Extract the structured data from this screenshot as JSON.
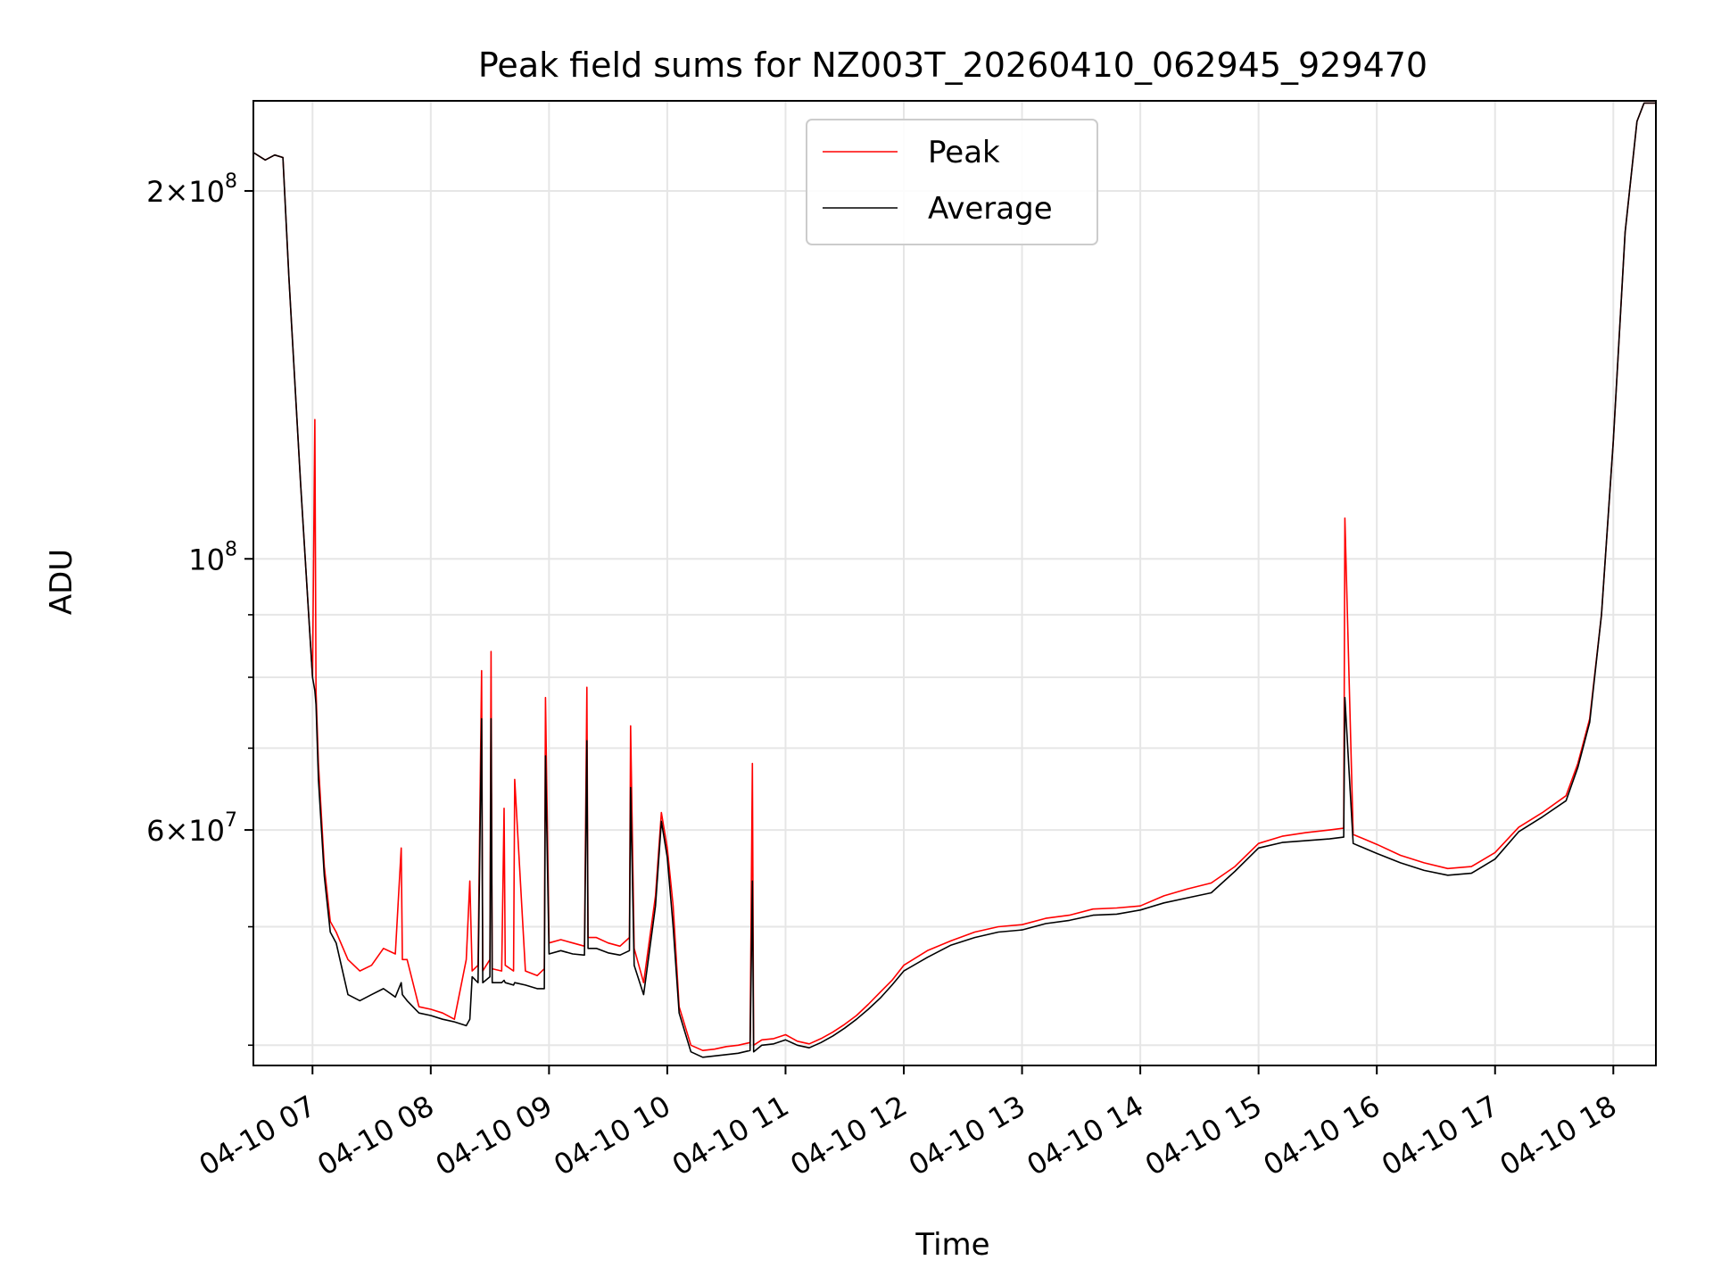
{
  "chart_data": {
    "type": "line",
    "title": "Peak field sums for NZ003T_20260410_062945_929470",
    "xlabel": "Time",
    "ylabel": "ADU",
    "yscale": "log",
    "xlim": [
      6.5,
      18.36
    ],
    "ylim": [
      38500000,
      237000000
    ],
    "grid": true,
    "legend_position": "top-center",
    "x_ticks": [
      {
        "value": 7,
        "label": "04-10 07"
      },
      {
        "value": 8,
        "label": "04-10 08"
      },
      {
        "value": 9,
        "label": "04-10 09"
      },
      {
        "value": 10,
        "label": "04-10 10"
      },
      {
        "value": 11,
        "label": "04-10 11"
      },
      {
        "value": 12,
        "label": "04-10 12"
      },
      {
        "value": 13,
        "label": "04-10 13"
      },
      {
        "value": 14,
        "label": "04-10 14"
      },
      {
        "value": 15,
        "label": "04-10 15"
      },
      {
        "value": 16,
        "label": "04-10 16"
      },
      {
        "value": 17,
        "label": "04-10 17"
      },
      {
        "value": 18,
        "label": "04-10 18"
      }
    ],
    "y_ticks": [
      {
        "value": 200000000,
        "mantissa": "2×10",
        "exponent": "8"
      },
      {
        "value": 100000000,
        "mantissa": "10",
        "exponent": "8"
      },
      {
        "value": 60000000,
        "mantissa": "6×10",
        "exponent": "7"
      }
    ],
    "y_minor_ticks": [
      40000000,
      50000000,
      70000000,
      80000000,
      90000000
    ],
    "x_unit": "hour of day (2026-04-10)",
    "series": [
      {
        "name": "Peak",
        "color": "#ff0000",
        "x": [
          6.5,
          6.6,
          6.68,
          6.75,
          6.8,
          6.9,
          7.0,
          7.02,
          7.03,
          7.05,
          7.1,
          7.15,
          7.2,
          7.3,
          7.4,
          7.5,
          7.6,
          7.7,
          7.75,
          7.76,
          7.8,
          7.9,
          8.0,
          8.1,
          8.2,
          8.3,
          8.33,
          8.35,
          8.4,
          8.43,
          8.44,
          8.5,
          8.51,
          8.52,
          8.6,
          8.62,
          8.63,
          8.7,
          8.71,
          8.8,
          8.9,
          8.96,
          8.97,
          9.0,
          9.1,
          9.2,
          9.3,
          9.32,
          9.33,
          9.4,
          9.5,
          9.6,
          9.68,
          9.69,
          9.72,
          9.8,
          9.9,
          9.95,
          10.0,
          10.05,
          10.1,
          10.2,
          10.3,
          10.4,
          10.5,
          10.6,
          10.7,
          10.72,
          10.73,
          10.8,
          10.9,
          11.0,
          11.1,
          11.2,
          11.3,
          11.4,
          11.5,
          11.6,
          11.7,
          11.8,
          11.9,
          12.0,
          12.2,
          12.4,
          12.6,
          12.8,
          13.0,
          13.2,
          13.4,
          13.6,
          13.8,
          14.0,
          14.2,
          14.4,
          14.6,
          14.8,
          15.0,
          15.2,
          15.4,
          15.6,
          15.72,
          15.73,
          15.8,
          16.0,
          16.2,
          16.4,
          16.6,
          16.8,
          17.0,
          17.2,
          17.4,
          17.6,
          17.7,
          17.8,
          17.9,
          18.0,
          18.1,
          18.2,
          18.26,
          18.36
        ],
        "y": [
          215000000,
          212000000,
          214000000,
          213000000,
          170000000,
          115000000,
          80000000,
          130000000,
          78000000,
          68000000,
          56000000,
          50500000,
          49500000,
          47000000,
          46000000,
          46500000,
          48000000,
          47500000,
          58000000,
          47000000,
          47000000,
          43000000,
          42800000,
          42500000,
          42000000,
          47000000,
          54500000,
          46000000,
          46500000,
          81000000,
          46000000,
          47000000,
          84000000,
          46200000,
          46000000,
          62500000,
          46500000,
          46000000,
          66000000,
          46000000,
          45600000,
          46200000,
          77000000,
          48500000,
          48800000,
          48500000,
          48200000,
          78500000,
          49000000,
          49000000,
          48500000,
          48200000,
          49000000,
          73000000,
          48000000,
          45000000,
          53000000,
          62000000,
          58000000,
          52000000,
          43000000,
          40000000,
          39600000,
          39700000,
          39900000,
          40000000,
          40200000,
          68000000,
          40000000,
          40400000,
          40500000,
          40800000,
          40300000,
          40100000,
          40500000,
          41000000,
          41600000,
          42300000,
          43200000,
          44200000,
          45200000,
          46500000,
          47800000,
          48700000,
          49500000,
          50000000,
          50200000,
          50800000,
          51100000,
          51700000,
          51800000,
          52000000,
          53000000,
          53700000,
          54300000,
          56000000,
          58500000,
          59300000,
          59700000,
          60000000,
          60200000,
          108000000,
          59500000,
          58400000,
          57200000,
          56400000,
          55800000,
          56000000,
          57500000,
          60300000,
          62000000,
          64000000,
          68000000,
          74000000,
          90000000,
          125000000,
          185000000,
          228000000,
          236000000,
          236000000
        ]
      },
      {
        "name": "Average",
        "color": "#000000",
        "x": [
          6.5,
          6.6,
          6.68,
          6.75,
          6.8,
          6.9,
          7.0,
          7.02,
          7.03,
          7.05,
          7.1,
          7.15,
          7.2,
          7.3,
          7.4,
          7.5,
          7.6,
          7.7,
          7.75,
          7.76,
          7.8,
          7.9,
          8.0,
          8.1,
          8.2,
          8.3,
          8.33,
          8.35,
          8.4,
          8.43,
          8.44,
          8.5,
          8.51,
          8.52,
          8.6,
          8.62,
          8.63,
          8.7,
          8.71,
          8.8,
          8.9,
          8.96,
          8.97,
          9.0,
          9.1,
          9.2,
          9.3,
          9.32,
          9.33,
          9.4,
          9.5,
          9.6,
          9.68,
          9.69,
          9.72,
          9.8,
          9.9,
          9.95,
          10.0,
          10.05,
          10.1,
          10.2,
          10.3,
          10.4,
          10.5,
          10.6,
          10.7,
          10.72,
          10.73,
          10.8,
          10.9,
          11.0,
          11.1,
          11.2,
          11.3,
          11.4,
          11.5,
          11.6,
          11.7,
          11.8,
          11.9,
          12.0,
          12.2,
          12.4,
          12.6,
          12.8,
          13.0,
          13.2,
          13.4,
          13.6,
          13.8,
          14.0,
          14.2,
          14.4,
          14.6,
          14.8,
          15.0,
          15.2,
          15.4,
          15.6,
          15.72,
          15.73,
          15.8,
          16.0,
          16.2,
          16.4,
          16.6,
          16.8,
          17.0,
          17.2,
          17.4,
          17.6,
          17.7,
          17.8,
          17.9,
          18.0,
          18.1,
          18.2,
          18.26,
          18.36
        ],
        "y": [
          215000000,
          212000000,
          214000000,
          213000000,
          170000000,
          115000000,
          80000000,
          78000000,
          76000000,
          66000000,
          55000000,
          49500000,
          48500000,
          44000000,
          43500000,
          44000000,
          44500000,
          43800000,
          45000000,
          44000000,
          43500000,
          42500000,
          42300000,
          42000000,
          41800000,
          41500000,
          42000000,
          45500000,
          45000000,
          74000000,
          45000000,
          45500000,
          74000000,
          45000000,
          45000000,
          45200000,
          45000000,
          44800000,
          45000000,
          44800000,
          44500000,
          44500000,
          69000000,
          47500000,
          47800000,
          47500000,
          47400000,
          71000000,
          48000000,
          48000000,
          47600000,
          47400000,
          47800000,
          65000000,
          46500000,
          44000000,
          52000000,
          61000000,
          57000000,
          50000000,
          42500000,
          39500000,
          39100000,
          39200000,
          39300000,
          39400000,
          39600000,
          54500000,
          39500000,
          40000000,
          40100000,
          40400000,
          40000000,
          39800000,
          40200000,
          40700000,
          41300000,
          42000000,
          42800000,
          43700000,
          44800000,
          46000000,
          47200000,
          48300000,
          49000000,
          49500000,
          49700000,
          50300000,
          50600000,
          51100000,
          51200000,
          51600000,
          52300000,
          52800000,
          53300000,
          55500000,
          58000000,
          58600000,
          58800000,
          59000000,
          59200000,
          77000000,
          58500000,
          57400000,
          56400000,
          55600000,
          55100000,
          55300000,
          56800000,
          59800000,
          61500000,
          63400000,
          67500000,
          73500000,
          90000000,
          125000000,
          185000000,
          228000000,
          236000000,
          236000000
        ]
      }
    ]
  }
}
